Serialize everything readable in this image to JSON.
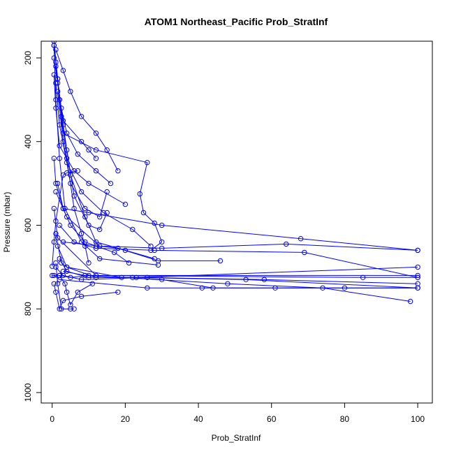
{
  "chart_data": {
    "type": "line",
    "title": "ATOM1 Northeast_Pacific Prob_StratInf",
    "xlabel": "Prob_StratInf",
    "ylabel": "Pressure (mbar)",
    "xlim": [
      -3,
      104
    ],
    "ylim": [
      1025,
      160
    ],
    "y_reversed": true,
    "x_ticks": [
      0,
      20,
      40,
      60,
      80,
      100
    ],
    "y_ticks": [
      200,
      400,
      600,
      800,
      1000
    ],
    "grid": false,
    "color": "#0000ff",
    "series": [
      {
        "x": [
          0.5,
          1.0,
          1.5,
          2.0,
          3.0,
          8.0,
          10.0,
          12.0
        ],
        "y": [
          170,
          210,
          250,
          300,
          350,
          400,
          420,
          440
        ]
      },
      {
        "x": [
          1.0,
          3.0,
          5.0,
          8.0,
          12.0,
          15.0,
          18.0
        ],
        "y": [
          180,
          230,
          280,
          340,
          380,
          420,
          470
        ]
      },
      {
        "x": [
          0.5,
          1.5,
          2.5,
          4.0,
          7.0,
          12.0,
          16.0
        ],
        "y": [
          200,
          260,
          320,
          380,
          430,
          470,
          500
        ]
      },
      {
        "x": [
          1.0,
          2.0,
          3.0,
          12.0,
          26.0,
          24.0,
          25.0,
          28.0,
          30.0,
          27.0
        ],
        "y": [
          220,
          300,
          380,
          420,
          450,
          525,
          570,
          595,
          640,
          660
        ]
      },
      {
        "x": [
          0.5,
          1.0,
          2.0,
          6.0,
          10.0,
          20.0
        ],
        "y": [
          240,
          320,
          410,
          470,
          500,
          550
        ]
      },
      {
        "x": [
          1.0,
          2.0,
          4.0,
          8.0,
          14.0,
          22.0,
          27.0
        ],
        "y": [
          260,
          360,
          450,
          520,
          570,
          610,
          650
        ]
      },
      {
        "x": [
          1.5,
          3.0,
          5.0,
          9.0,
          13.0,
          15.0
        ],
        "y": [
          280,
          400,
          500,
          560,
          580,
          520
        ]
      },
      {
        "x": [
          2.0,
          4.0,
          6.0,
          10.0,
          13.0,
          15.0
        ],
        "y": [
          300,
          420,
          530,
          600,
          610,
          570
        ]
      },
      {
        "x": [
          0.5,
          1.5,
          3.0,
          5.0,
          9.0,
          12.0,
          20.0,
          28.0
        ],
        "y": [
          160,
          250,
          360,
          480,
          580,
          640,
          660,
          680
        ]
      },
      {
        "x": [
          2.5,
          4.0,
          6.0,
          8.0,
          9.0,
          10.0
        ],
        "y": [
          340,
          440,
          560,
          620,
          650,
          690
        ]
      },
      {
        "x": [
          0.5,
          1.0,
          3.0,
          10.0,
          30.0,
          68.0,
          100.0
        ],
        "y": [
          440,
          500,
          560,
          570,
          600,
          632,
          660
        ]
      },
      {
        "x": [
          1.0,
          4.0,
          13.0,
          30.0,
          64.0,
          100.0
        ],
        "y": [
          520,
          580,
          650,
          655,
          645,
          660
        ]
      },
      {
        "x": [
          2.0,
          6.0,
          12.0,
          28.0,
          69.0,
          100.0
        ],
        "y": [
          600,
          640,
          655,
          660,
          665,
          725
        ]
      },
      {
        "x": [
          3.0,
          18.0,
          29.0,
          46.0
        ],
        "y": [
          640,
          655,
          685,
          685
        ]
      },
      {
        "x": [
          0.5,
          1.5,
          12.0,
          85.0,
          100.0
        ],
        "y": [
          560,
          630,
          720,
          725,
          725
        ]
      },
      {
        "x": [
          1.0,
          3.0,
          8.0,
          26.0,
          58.0,
          100.0
        ],
        "y": [
          700,
          720,
          730,
          725,
          730,
          740
        ]
      },
      {
        "x": [
          2.0,
          4.0,
          10.0,
          22.0,
          53.0,
          100.0
        ],
        "y": [
          680,
          710,
          725,
          725,
          730,
          750
        ]
      },
      {
        "x": [
          0.5,
          2.0,
          26.0,
          41.0,
          80.0,
          100.0
        ],
        "y": [
          720,
          730,
          750,
          750,
          750,
          750
        ]
      },
      {
        "x": [
          3.0,
          9.0,
          30.0,
          44.0,
          61.0,
          100.0
        ],
        "y": [
          710,
          720,
          730,
          750,
          750,
          750
        ]
      },
      {
        "x": [
          1.5,
          4.0,
          19.0,
          48.0,
          74.0,
          98.0
        ],
        "y": [
          650,
          700,
          725,
          740,
          750,
          782
        ]
      },
      {
        "x": [
          0.5,
          1.0,
          2.0,
          3.0,
          8.0,
          18.0
        ],
        "y": [
          740,
          760,
          800,
          780,
          770,
          760
        ]
      },
      {
        "x": [
          1.0,
          1.5,
          2.5,
          5.0,
          6.0
        ],
        "y": [
          690,
          740,
          800,
          800,
          800
        ]
      },
      {
        "x": [
          2.0,
          3.5,
          4.0,
          5.0,
          7.0,
          11.0
        ],
        "y": [
          720,
          740,
          760,
          790,
          760,
          740
        ]
      },
      {
        "x": [
          0.0,
          2.0,
          5.0,
          10.0,
          100.0
        ],
        "y": [
          720,
          720,
          725,
          720,
          720
        ]
      },
      {
        "x": [
          1.0,
          2.5,
          4.0,
          12.0,
          23.0,
          100.0
        ],
        "y": [
          620,
          690,
          700,
          725,
          725,
          700
        ]
      },
      {
        "x": [
          0.0,
          0.5,
          1.0,
          3.0,
          4.0,
          7.0
        ],
        "y": [
          698,
          640,
          590,
          480,
          475,
          470
        ]
      },
      {
        "x": [
          1.5,
          3.0,
          5.0,
          9.0,
          12.0,
          17.0,
          21.0
        ],
        "y": [
          500,
          560,
          600,
          640,
          650,
          665,
          690
        ]
      },
      {
        "x": [
          0.5,
          1.0,
          2.0,
          3.5,
          8.0,
          13.0,
          29.0
        ],
        "y": [
          170,
          300,
          440,
          560,
          640,
          680,
          695
        ]
      }
    ]
  }
}
